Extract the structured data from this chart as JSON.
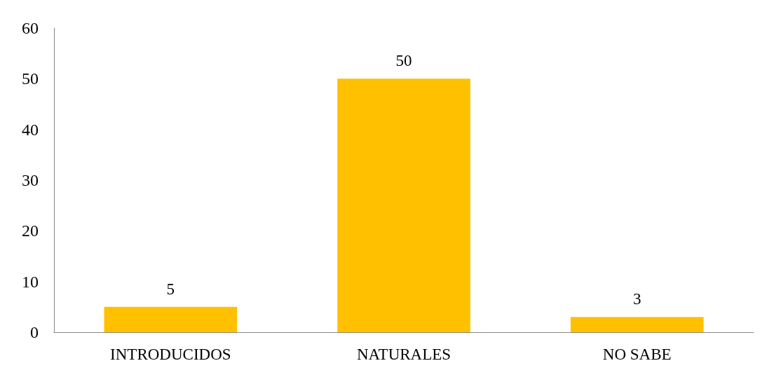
{
  "chart_data": {
    "type": "bar",
    "categories": [
      "INTRODUCIDOS",
      "NATURALES",
      "NO SABE"
    ],
    "values": [
      5,
      50,
      3
    ],
    "color": "#ffc000",
    "ylim": [
      0,
      60
    ],
    "yticks": [
      0,
      10,
      20,
      30,
      40,
      50,
      60
    ],
    "grid": false,
    "data_labels": true
  }
}
